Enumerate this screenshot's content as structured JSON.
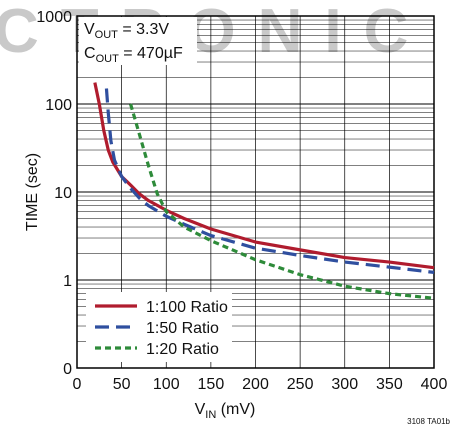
{
  "watermark": "CTRONIC",
  "figure_id": "3108 TA01b",
  "annotations": {
    "vout_label": "V",
    "vout_sub": "OUT",
    "vout_value": " = 3.3V",
    "cout_label": "C",
    "cout_sub": "OUT",
    "cout_value": " = 470µF"
  },
  "axis_text": {
    "ylabel": "TIME (sec)",
    "xlabel_main": "V",
    "xlabel_sub": "IN",
    "xlabel_unit": " (mV)"
  },
  "colors": {
    "series_1": "#b01c2e",
    "series_2": "#2f4f9f",
    "series_3": "#2e8b3a",
    "grid": "#000000"
  },
  "chart_data": {
    "type": "line",
    "xlim": [
      0,
      400
    ],
    "ylim_log": [
      0,
      1000
    ],
    "yscale": "log",
    "grid": true,
    "legend_placement": "bottom-left",
    "x_ticks": [
      "0",
      "50",
      "100",
      "150",
      "200",
      "250",
      "300",
      "350",
      "400"
    ],
    "x_tick_values": [
      0,
      50,
      100,
      150,
      200,
      250,
      300,
      350,
      400
    ],
    "y_ticks": [
      "0",
      "1",
      "10",
      "100",
      "1000"
    ],
    "y_tick_values": [
      0,
      1,
      10,
      100,
      1000
    ],
    "series": [
      {
        "name": "1:100 Ratio",
        "dash": "solid",
        "points": [
          [
            20,
            175
          ],
          [
            25,
            100
          ],
          [
            30,
            50
          ],
          [
            35,
            30
          ],
          [
            40,
            22
          ],
          [
            50,
            15
          ],
          [
            60,
            12
          ],
          [
            70,
            9.5
          ],
          [
            80,
            8
          ],
          [
            100,
            6.2
          ],
          [
            120,
            5
          ],
          [
            150,
            3.8
          ],
          [
            200,
            2.7
          ],
          [
            250,
            2.2
          ],
          [
            300,
            1.8
          ],
          [
            350,
            1.6
          ],
          [
            400,
            1.38
          ]
        ]
      },
      {
        "name": "1:50 Ratio",
        "dash": "long",
        "points": [
          [
            33,
            150
          ],
          [
            35,
            80
          ],
          [
            38,
            38
          ],
          [
            42,
            23
          ],
          [
            50,
            15
          ],
          [
            60,
            11
          ],
          [
            70,
            8.5
          ],
          [
            80,
            7
          ],
          [
            100,
            5.3
          ],
          [
            120,
            4.3
          ],
          [
            150,
            3.2
          ],
          [
            200,
            2.3
          ],
          [
            250,
            1.9
          ],
          [
            300,
            1.6
          ],
          [
            350,
            1.4
          ],
          [
            400,
            1.22
          ]
        ]
      },
      {
        "name": "1:20 Ratio",
        "dash": "short",
        "points": [
          [
            60,
            100
          ],
          [
            70,
            45
          ],
          [
            80,
            20
          ],
          [
            90,
            9.5
          ],
          [
            100,
            6
          ],
          [
            120,
            4
          ],
          [
            150,
            2.8
          ],
          [
            200,
            1.7
          ],
          [
            250,
            1.15
          ],
          [
            300,
            0.85
          ],
          [
            350,
            0.7
          ],
          [
            400,
            0.62
          ]
        ]
      }
    ]
  }
}
